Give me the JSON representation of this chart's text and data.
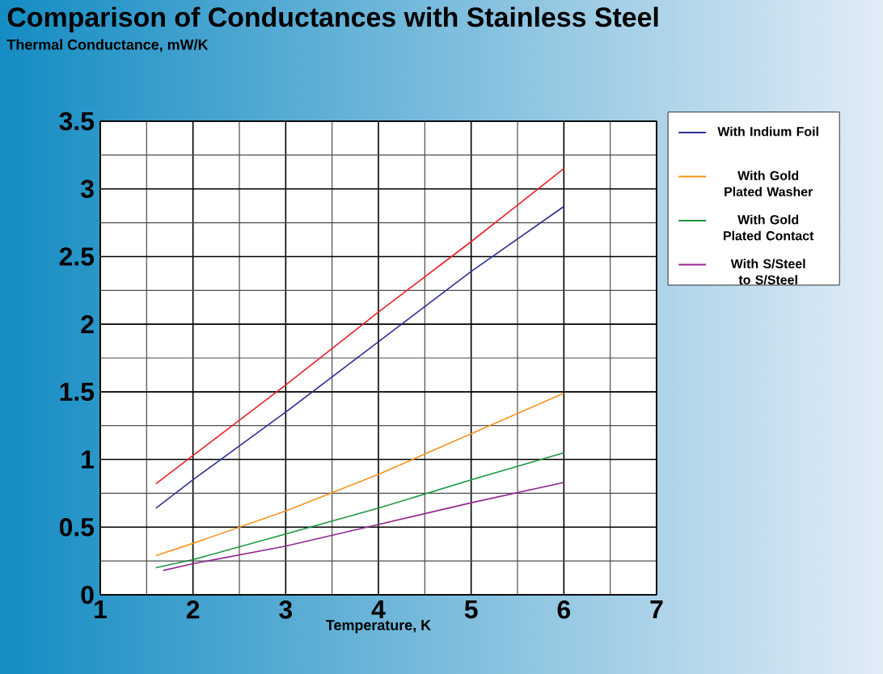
{
  "chart_data": {
    "type": "line",
    "title": "Comparison of Conductances with Stainless Steel",
    "ylabel": "Thermal Conductance, mW/K",
    "xlabel": "Temperature, K",
    "xlim": [
      1,
      7
    ],
    "xticks": [
      1,
      2,
      3,
      4,
      5,
      6,
      7
    ],
    "ylim": [
      0,
      3.5
    ],
    "yticks": [
      0,
      0.5,
      1,
      1.5,
      2,
      2.5,
      3,
      3.5
    ],
    "grid": true,
    "legend": "right",
    "line_style": "solid",
    "marker": "none",
    "series": [
      {
        "color": "#e8202a",
        "x": [
          1.6,
          2,
          3,
          4,
          5,
          6
        ],
        "values": [
          0.82,
          1.03,
          1.55,
          2.09,
          2.61,
          3.15
        ]
      },
      {
        "name": "With Indium Foil",
        "color": "#2e3192",
        "x": [
          1.6,
          2,
          3,
          4,
          5,
          6
        ],
        "values": [
          0.64,
          0.85,
          1.35,
          1.87,
          2.39,
          2.87
        ]
      },
      {
        "name": "With Gold Plated Washer",
        "color": "#f7941d",
        "x": [
          1.6,
          2,
          3,
          4,
          5,
          6
        ],
        "values": [
          0.29,
          0.38,
          0.62,
          0.89,
          1.19,
          1.49
        ]
      },
      {
        "name": "With Gold Plated Contact",
        "color": "#1a9641",
        "x": [
          1.6,
          2,
          3,
          4,
          5,
          6
        ],
        "values": [
          0.2,
          0.26,
          0.45,
          0.64,
          0.85,
          1.05
        ]
      },
      {
        "name": "With S/Steel to S/Steel",
        "color": "#92278f",
        "x": [
          1.68,
          2,
          3,
          4,
          5,
          6
        ],
        "values": [
          0.18,
          0.23,
          0.36,
          0.52,
          0.68,
          0.83
        ]
      }
    ]
  }
}
